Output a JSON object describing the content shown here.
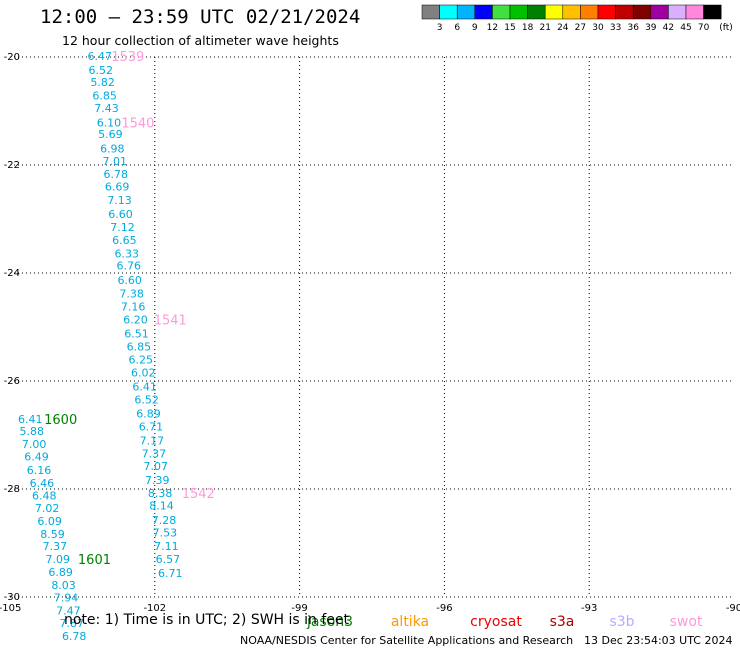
{
  "header": {
    "title": "12:00 — 23:59 UTC 02/21/2024",
    "subtitle": "12 hour collection of altimeter wave heights"
  },
  "colorbar": {
    "labels": [
      "3",
      "6",
      "9",
      "12",
      "15",
      "18",
      "21",
      "24",
      "27",
      "30",
      "33",
      "36",
      "39",
      "42",
      "45",
      "70"
    ],
    "unit": "(ft)",
    "colors": [
      "#808080",
      "#00ffff",
      "#00b4ff",
      "#0000ff",
      "#40e040",
      "#00c000",
      "#008000",
      "#ffff00",
      "#ffc000",
      "#ff8000",
      "#ff0000",
      "#c00000",
      "#800000",
      "#a000a0",
      "#d8b0ff",
      "#ff88dd",
      "#000000"
    ]
  },
  "footer": {
    "note": "note: 1) Time is in UTC; 2) SWH is in feet",
    "credit": "NOAA/NESDIS Center for Satellite Applications and Research",
    "timestamp": "13 Dec 23:54:03 UTC 2024"
  },
  "chart_data": {
    "type": "scatter",
    "title": "12:00 — 23:59 UTC 02/21/2024",
    "xlim": [
      -105,
      -90
    ],
    "ylim": [
      -30,
      -20
    ],
    "xticks": [
      "-105",
      "-102",
      "-99",
      "-96",
      "-93",
      "-90"
    ],
    "yticks": [
      "-20",
      "-22",
      "-24",
      "-26",
      "-28",
      "-30"
    ],
    "grid": true,
    "satellites": [
      {
        "name": "jason3",
        "color": "#008000"
      },
      {
        "name": "altika",
        "color": "#ff9900"
      },
      {
        "name": "cryosat",
        "color": "#ee0000"
      },
      {
        "name": "s3a",
        "color": "#aa0000"
      },
      {
        "name": "s3b",
        "color": "#bbaaff"
      },
      {
        "name": "swot",
        "color": "#ff99dd"
      }
    ],
    "series": [
      {
        "color": "#00aadd",
        "points": [
          {
            "x": -103.14,
            "y": -19.98,
            "v": "6.47"
          },
          {
            "x": -103.12,
            "y": -20.24,
            "v": "6.52"
          },
          {
            "x": -103.08,
            "y": -20.46,
            "v": "5.82"
          },
          {
            "x": -103.04,
            "y": -20.71,
            "v": "6.85"
          },
          {
            "x": -103.0,
            "y": -20.94,
            "v": "7.43"
          },
          {
            "x": -102.95,
            "y": -21.21,
            "v": "6.10"
          },
          {
            "x": -102.92,
            "y": -21.43,
            "v": "5.69"
          },
          {
            "x": -102.88,
            "y": -21.69,
            "v": "6.98"
          },
          {
            "x": -102.83,
            "y": -21.93,
            "v": "7.01"
          },
          {
            "x": -102.81,
            "y": -22.17,
            "v": "6.78"
          },
          {
            "x": -102.78,
            "y": -22.4,
            "v": "6.69"
          },
          {
            "x": -102.73,
            "y": -22.65,
            "v": "7.13"
          },
          {
            "x": -102.71,
            "y": -22.91,
            "v": "6.60"
          },
          {
            "x": -102.67,
            "y": -23.15,
            "v": "7.12"
          },
          {
            "x": -102.63,
            "y": -23.39,
            "v": "6.65"
          },
          {
            "x": -102.58,
            "y": -23.64,
            "v": "6.33"
          },
          {
            "x": -102.54,
            "y": -23.86,
            "v": "6.76"
          },
          {
            "x": -102.52,
            "y": -24.13,
            "v": "6.60"
          },
          {
            "x": -102.48,
            "y": -24.38,
            "v": "7.38"
          },
          {
            "x": -102.45,
            "y": -24.62,
            "v": "7.16"
          },
          {
            "x": -102.4,
            "y": -24.86,
            "v": "6.20"
          },
          {
            "x": -102.38,
            "y": -25.12,
            "v": "6.51"
          },
          {
            "x": -102.33,
            "y": -25.36,
            "v": "6.85"
          },
          {
            "x": -102.29,
            "y": -25.6,
            "v": "6.25"
          },
          {
            "x": -102.24,
            "y": -25.84,
            "v": "6.02"
          },
          {
            "x": -102.21,
            "y": -26.1,
            "v": "6.41"
          },
          {
            "x": -102.17,
            "y": -26.34,
            "v": "6.52"
          },
          {
            "x": -102.13,
            "y": -26.6,
            "v": "6.89"
          },
          {
            "x": -102.08,
            "y": -26.84,
            "v": "6.71"
          },
          {
            "x": -102.06,
            "y": -27.1,
            "v": "7.17"
          },
          {
            "x": -102.02,
            "y": -27.34,
            "v": "7.37"
          },
          {
            "x": -101.98,
            "y": -27.57,
            "v": "7.07"
          },
          {
            "x": -101.95,
            "y": -27.83,
            "v": "7.39"
          },
          {
            "x": -101.89,
            "y": -28.07,
            "v": "8.38"
          },
          {
            "x": -101.86,
            "y": -28.31,
            "v": "8.14"
          },
          {
            "x": -101.81,
            "y": -28.57,
            "v": "7.28"
          },
          {
            "x": -101.79,
            "y": -28.81,
            "v": "7.53"
          },
          {
            "x": -101.76,
            "y": -29.06,
            "v": "7.11"
          },
          {
            "x": -101.73,
            "y": -29.3,
            "v": "6.57"
          },
          {
            "x": -101.68,
            "y": -29.56,
            "v": "6.71"
          },
          {
            "x": -104.58,
            "y": -26.7,
            "v": "6.41"
          },
          {
            "x": -104.55,
            "y": -26.93,
            "v": "5.88"
          },
          {
            "x": -104.5,
            "y": -27.17,
            "v": "7.00"
          },
          {
            "x": -104.45,
            "y": -27.4,
            "v": "6.49"
          },
          {
            "x": -104.4,
            "y": -27.65,
            "v": "6.16"
          },
          {
            "x": -104.34,
            "y": -27.89,
            "v": "6.46"
          },
          {
            "x": -104.29,
            "y": -28.12,
            "v": "6.48"
          },
          {
            "x": -104.23,
            "y": -28.35,
            "v": "7.02"
          },
          {
            "x": -104.18,
            "y": -28.59,
            "v": "6.09"
          },
          {
            "x": -104.12,
            "y": -28.83,
            "v": "8.59"
          },
          {
            "x": -104.07,
            "y": -29.06,
            "v": "7.37"
          },
          {
            "x": -104.01,
            "y": -29.3,
            "v": "7.09"
          },
          {
            "x": -103.95,
            "y": -29.54,
            "v": "6.89"
          },
          {
            "x": -103.89,
            "y": -29.78,
            "v": "8.03"
          },
          {
            "x": -103.84,
            "y": -30.01,
            "v": "7.94"
          },
          {
            "x": -103.79,
            "y": -30.25,
            "v": "7.47"
          },
          {
            "x": -103.72,
            "y": -30.48,
            "v": "7.87"
          },
          {
            "x": -103.67,
            "y": -30.72,
            "v": "6.78"
          }
        ]
      }
    ],
    "time_labels": [
      {
        "x": -102.56,
        "y": -19.98,
        "text": "1539",
        "color": "#ff99dd"
      },
      {
        "x": -102.35,
        "y": -21.21,
        "text": "1540",
        "color": "#ff99dd"
      },
      {
        "x": -101.68,
        "y": -24.86,
        "text": "1541",
        "color": "#ff99dd"
      },
      {
        "x": -101.1,
        "y": -28.07,
        "text": "1542",
        "color": "#ff99dd"
      },
      {
        "x": -103.95,
        "y": -26.7,
        "text": "1600",
        "color": "#008000"
      },
      {
        "x": -103.25,
        "y": -29.3,
        "text": "1601",
        "color": "#008000"
      }
    ]
  }
}
